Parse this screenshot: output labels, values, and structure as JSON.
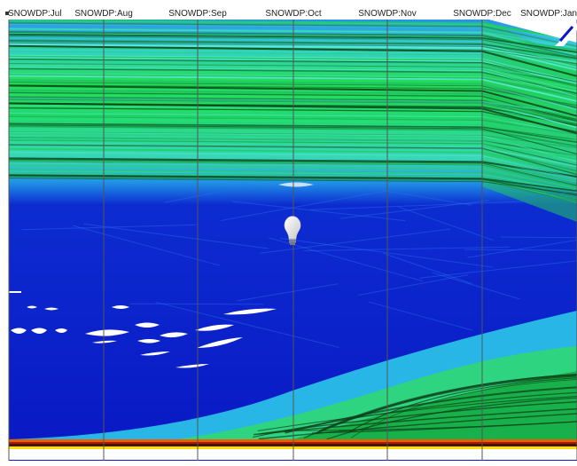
{
  "chart_data": {
    "type": "parallel-coordinates",
    "axes": [
      {
        "label": "SNOWDP:Jul"
      },
      {
        "label": "SNOWDP:Aug"
      },
      {
        "label": "SNOWDP:Sep"
      },
      {
        "label": "SNOWDP:Oct"
      },
      {
        "label": "SNOWDP:Nov"
      },
      {
        "label": "SNOWDP:Dec"
      },
      {
        "label": "SNOWDP:Jan"
      }
    ],
    "density_colormap": [
      "#0a14c8",
      "#1e50e6",
      "#2ea0e8",
      "#3ad4d0",
      "#24e05c",
      "#10a838",
      "#0c3a14"
    ],
    "baseline_colors": [
      "#f05a00",
      "#a02000",
      "#4a1000",
      "#ffe000"
    ],
    "bands": [
      {
        "start": 0.0,
        "end": 0.02,
        "color": "#2aa0ee"
      },
      {
        "start": 0.02,
        "end": 0.06,
        "color": "#3ad6cf"
      },
      {
        "start": 0.06,
        "end": 0.12,
        "color": "#20d848"
      },
      {
        "start": 0.12,
        "end": 0.2,
        "color": "#28e070"
      },
      {
        "start": 0.2,
        "end": 0.29,
        "color": "#3ad4b8"
      },
      {
        "start": 0.29,
        "end": 0.33,
        "color": "#2cb8e0"
      },
      {
        "start": 0.33,
        "end": 0.36,
        "color": "#1e7ee8"
      },
      {
        "start": 0.36,
        "end": 0.66,
        "color": "#0a1ec8"
      }
    ],
    "icons": {
      "lightbulb": "lightbulb-icon",
      "collapse": "collapse-icon"
    }
  }
}
